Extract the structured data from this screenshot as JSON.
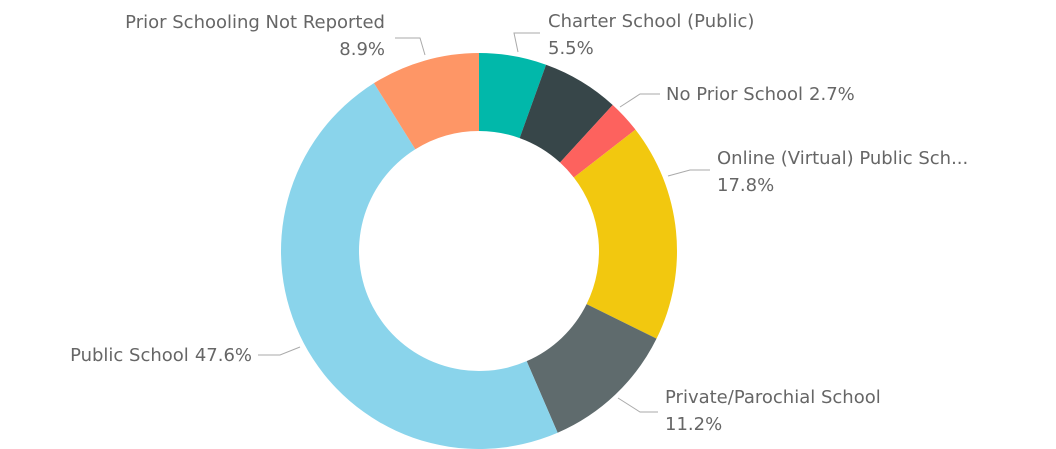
{
  "chart_data": {
    "type": "donut",
    "categories": [
      "Charter School (Public)",
      null,
      "No Prior School",
      "Online (Virtual) Public Sch...",
      "Private/Parochial School",
      "Public School",
      "Prior Schooling Not Reported"
    ],
    "values": [
      5.5,
      6.3,
      2.7,
      17.8,
      11.2,
      47.6,
      8.9
    ],
    "value_labels": [
      "5.5%",
      null,
      "2.7%",
      "17.8%",
      "11.2%",
      "47.6%",
      "8.9%"
    ],
    "colors": [
      "#01B8AA",
      "#374649",
      "#FD625E",
      "#F2C80F",
      "#5F6B6D",
      "#8AD4EB",
      "#FE9666"
    ]
  }
}
